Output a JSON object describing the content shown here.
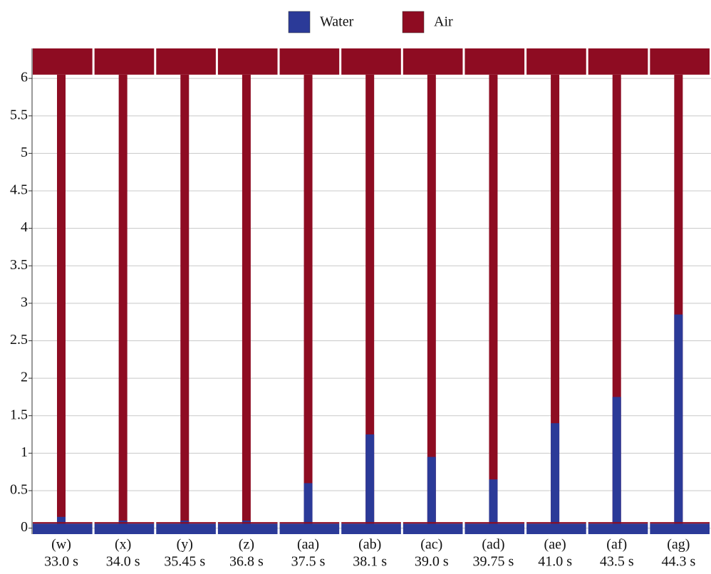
{
  "chart_data": {
    "type": "panels",
    "legend": [
      {
        "name": "Water",
        "color": "#2b3a98"
      },
      {
        "name": "Air",
        "color": "#8e0c22"
      }
    ],
    "categories": [
      "(w)",
      "(x)",
      "(y)",
      "(z)",
      "(aa)",
      "(ab)",
      "(ac)",
      "(ad)",
      "(ae)",
      "(af)",
      "(ag)"
    ],
    "times": [
      "33.0 s",
      "34.0 s",
      "35.45 s",
      "36.8 s",
      "37.5 s",
      "38.1 s",
      "39.0 s",
      "39.75 s",
      "41.0 s",
      "43.5 s",
      "44.3 s"
    ],
    "values": [
      0.15,
      0.1,
      0.1,
      0.1,
      0.6,
      1.25,
      0.95,
      0.65,
      1.4,
      1.75,
      2.85
    ],
    "ylim": [
      -0.08,
      6.4
    ],
    "yticks": [
      0,
      0.5,
      1,
      1.5,
      2,
      2.5,
      3,
      3.5,
      4,
      4.5,
      5,
      5.5,
      6
    ],
    "grid": true
  }
}
